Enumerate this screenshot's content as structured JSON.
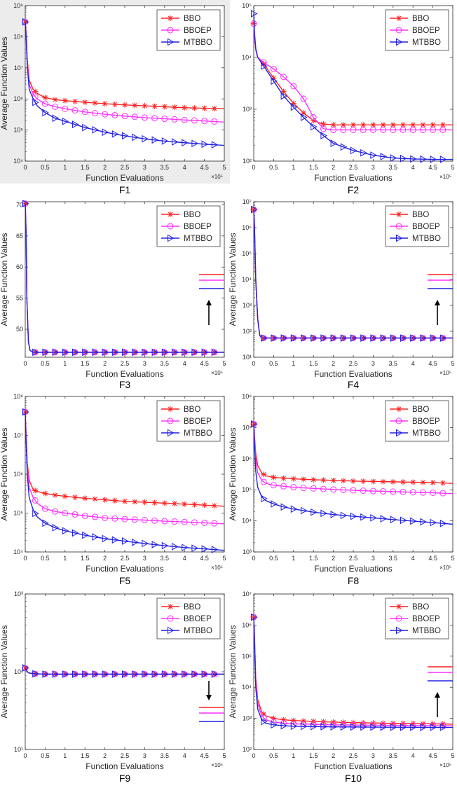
{
  "figure": {
    "series_styles": [
      {
        "name": "BBO",
        "color": "#ff2020",
        "marker": "star"
      },
      {
        "name": "BBOEP",
        "color": "#ff30ff",
        "marker": "circle"
      },
      {
        "name": "MTBBO",
        "color": "#2020e0",
        "marker": "triangle-right"
      }
    ],
    "x_multiplier_label": "×10⁵",
    "xlabel": "Function Evaluations",
    "ylabel": "Average Function Values"
  },
  "chart_data": [
    {
      "type": "line",
      "caption": "F1",
      "yscale": "log",
      "xlabel": "Function Evaluations",
      "ylabel": "Average Function Values",
      "xlim": [
        0,
        5
      ],
      "xticks": [
        "0",
        "0.5",
        "1",
        "1.5",
        "2",
        "2.5",
        "3",
        "3.5",
        "4",
        "4.5",
        "5"
      ],
      "ylim_exp": [
        4,
        9
      ],
      "yticks": [
        "10⁴",
        "10⁵",
        "10⁶",
        "10⁷",
        "10⁸",
        "10⁹"
      ],
      "grid": false,
      "legend": "top-right",
      "x": [
        0,
        0.02,
        0.05,
        0.1,
        0.2,
        0.3,
        0.5,
        0.75,
        1,
        1.5,
        2,
        2.5,
        3,
        3.5,
        4,
        4.5,
        5
      ],
      "series": [
        {
          "name": "BBO",
          "values": [
            300000000.0,
            150000000.0,
            20000000.0,
            4000000.0,
            2000000.0,
            1500000.0,
            1100000.0,
            950000.0,
            880000.0,
            780000.0,
            700000.0,
            640000.0,
            600000.0,
            560000.0,
            520000.0,
            500000.0,
            480000.0
          ]
        },
        {
          "name": "BBOEP",
          "values": [
            300000000.0,
            130000000.0,
            16000000.0,
            3000000.0,
            1400000.0,
            1000000.0,
            700000.0,
            560000.0,
            480000.0,
            380000.0,
            320000.0,
            280000.0,
            250000.0,
            230000.0,
            210000.0,
            195000.0,
            180000.0
          ]
        },
        {
          "name": "MTBBO",
          "values": [
            300000000.0,
            120000000.0,
            12000000.0,
            2000000.0,
            1000000.0,
            600000.0,
            360000.0,
            240000.0,
            190000.0,
            120000.0,
            85000.0,
            65000.0,
            52000.0,
            44000.0,
            39000.0,
            35000.0,
            32000.0
          ]
        }
      ],
      "annotation_arrow": null
    },
    {
      "type": "line",
      "caption": "F2",
      "yscale": "log",
      "xlabel": "Function Evaluations",
      "ylabel": "",
      "xlim": [
        0,
        5
      ],
      "xticks": [
        "0",
        "0.5",
        "1",
        "1.5",
        "2",
        "2.5",
        "3",
        "3.5",
        "4",
        "4.5",
        "5"
      ],
      "ylim_exp": [
        2,
        5
      ],
      "yticks": [
        "10²",
        "10³",
        "10⁴",
        "10⁵"
      ],
      "grid": false,
      "legend": "top-right",
      "x": [
        0,
        0.02,
        0.05,
        0.1,
        0.25,
        0.5,
        0.75,
        1,
        1.25,
        1.5,
        1.75,
        2,
        2.5,
        3,
        3.5,
        4,
        4.5,
        5
      ],
      "series": [
        {
          "name": "BBO",
          "values": [
            45000.0,
            25000.0,
            14000.0,
            10000.0,
            7500.0,
            4000.0,
            2200.0,
            1300.0,
            850,
            600,
            520,
            500,
            500,
            500,
            500,
            500,
            500,
            500
          ]
        },
        {
          "name": "BBOEP",
          "values": [
            45000.0,
            25000.0,
            14000.0,
            10000.0,
            8000.0,
            6000.0,
            4200.0,
            2800.0,
            1600.0,
            700,
            420,
            400,
            400,
            400,
            400,
            400,
            400,
            400
          ]
        },
        {
          "name": "MTBBO",
          "values": [
            70000.0,
            30000.0,
            15000.0,
            10000.0,
            6800.0,
            3500.0,
            1800.0,
            1100.0,
            700,
            460,
            310,
            220,
            160,
            130,
            115,
            110,
            108,
            108
          ]
        }
      ],
      "annotation_arrow": null
    },
    {
      "type": "line",
      "caption": "F3",
      "yscale": "linear",
      "xlabel": "Function Evaluations",
      "ylabel": "Average Function Values",
      "xlim": [
        0,
        5
      ],
      "xticks": [
        "0",
        "0.5",
        "1",
        "1.5",
        "2",
        "2.5",
        "3",
        "3.5",
        "4",
        "4.5",
        "5"
      ],
      "ylim": [
        45.5,
        70.5
      ],
      "yticks": [
        "50",
        "55",
        "60",
        "65",
        "70"
      ],
      "ytick_values": [
        50,
        55,
        60,
        65,
        70
      ],
      "grid": false,
      "legend": "top-right",
      "x": [
        0,
        0.02,
        0.04,
        0.08,
        0.12,
        0.2,
        0.5,
        1,
        1.5,
        2,
        2.5,
        3,
        3.5,
        4,
        4.5,
        5
      ],
      "series": [
        {
          "name": "BBO",
          "values": [
            70.2,
            66,
            55,
            48,
            46.6,
            46.3,
            46.3,
            46.3,
            46.3,
            46.3,
            46.3,
            46.3,
            46.3,
            46.3,
            46.3,
            46.3
          ]
        },
        {
          "name": "BBOEP",
          "values": [
            70.2,
            66,
            55,
            48,
            46.6,
            46.3,
            46.3,
            46.3,
            46.3,
            46.3,
            46.3,
            46.3,
            46.3,
            46.3,
            46.3,
            46.3
          ]
        },
        {
          "name": "MTBBO",
          "values": [
            70.2,
            66,
            55,
            48,
            46.6,
            46.3,
            46.3,
            46.3,
            46.3,
            46.3,
            46.3,
            46.3,
            46.3,
            46.3,
            46.3,
            46.3
          ]
        }
      ],
      "annotation_arrow": "up"
    },
    {
      "type": "line",
      "caption": "F4",
      "yscale": "log",
      "xlabel": "Function Evaluations",
      "ylabel": "Average Function Values",
      "xlim": [
        0,
        5
      ],
      "xticks": [
        "0",
        "0.5",
        "1",
        "1.5",
        "2",
        "2.5",
        "3",
        "3.5",
        "4",
        "4.5",
        "5"
      ],
      "ylim_exp": [
        1,
        7
      ],
      "yticks": [
        "10¹",
        "10²",
        "10³",
        "10⁴",
        "10⁵",
        "10⁶",
        "10⁷"
      ],
      "grid": false,
      "legend": "top-right",
      "x": [
        0,
        0.02,
        0.05,
        0.1,
        0.15,
        0.2,
        0.5,
        1,
        1.5,
        2,
        2.5,
        3,
        3.5,
        4,
        4.5,
        5
      ],
      "series": [
        {
          "name": "BBO",
          "values": [
            5000000.0,
            1000000.0,
            10000.0,
            300,
            70,
            55,
            55,
            55,
            55,
            55,
            55,
            55,
            55,
            55,
            55,
            55
          ]
        },
        {
          "name": "BBOEP",
          "values": [
            5000000.0,
            1000000.0,
            10000.0,
            300,
            70,
            55,
            55,
            55,
            55,
            55,
            55,
            55,
            55,
            55,
            55,
            55
          ]
        },
        {
          "name": "MTBBO",
          "values": [
            5000000.0,
            1000000.0,
            10000.0,
            300,
            70,
            55,
            55,
            55,
            55,
            55,
            55,
            55,
            55,
            55,
            55,
            55
          ]
        }
      ],
      "annotation_arrow": "up"
    },
    {
      "type": "line",
      "caption": "F5",
      "yscale": "log",
      "xlabel": "Function Evaluations",
      "ylabel": "Average Function Values",
      "xlim": [
        0,
        5
      ],
      "xticks": [
        "0",
        "0.5",
        "1",
        "1.5",
        "2",
        "2.5",
        "3",
        "3.5",
        "4",
        "4.5",
        "5"
      ],
      "ylim_exp": [
        4,
        8
      ],
      "yticks": [
        "10⁴",
        "10⁵",
        "10⁶",
        "10⁷",
        "10⁸"
      ],
      "grid": false,
      "legend": "top-right",
      "x": [
        0,
        0.02,
        0.05,
        0.1,
        0.2,
        0.3,
        0.5,
        0.75,
        1,
        1.5,
        2,
        2.5,
        3,
        3.5,
        4,
        4.5,
        5
      ],
      "series": [
        {
          "name": "BBO",
          "values": [
            40000000.0,
            12000000.0,
            2000000.0,
            700000.0,
            400000.0,
            360000.0,
            320000.0,
            290000.0,
            270000.0,
            240000.0,
            220000.0,
            200000.0,
            190000.0,
            180000.0,
            170000.0,
            160000.0,
            150000.0
          ]
        },
        {
          "name": "BBOEP",
          "values": [
            40000000.0,
            10000000.0,
            1600000.0,
            450000.0,
            250000.0,
            180000.0,
            130000.0,
            110000.0,
            100000.0,
            85000.0,
            75000.0,
            70000.0,
            66000.0,
            62000.0,
            59000.0,
            56000.0,
            53000.0
          ]
        },
        {
          "name": "MTBBO",
          "values": [
            40000000.0,
            8000000.0,
            1000000.0,
            250000.0,
            120000.0,
            80000.0,
            55000.0,
            42000.0,
            35000.0,
            27000.0,
            22000.0,
            19000.0,
            16500.0,
            14500.0,
            13000.0,
            12000.0,
            11000.0
          ]
        }
      ],
      "annotation_arrow": null
    },
    {
      "type": "line",
      "caption": "F8",
      "yscale": "log",
      "xlabel": "Function Evaluations",
      "ylabel": "Average Function Values",
      "xlim": [
        0,
        5
      ],
      "xticks": [
        "0",
        "0.5",
        "1",
        "1.5",
        "2",
        "2.5",
        "3",
        "3.5",
        "4",
        "4.5",
        "5"
      ],
      "ylim_exp": [
        3,
        8
      ],
      "yticks": [
        "10³",
        "10⁴",
        "10⁵",
        "10⁶",
        "10⁷",
        "10⁸"
      ],
      "grid": false,
      "legend": "top-right",
      "x": [
        0,
        0.02,
        0.05,
        0.1,
        0.2,
        0.3,
        0.5,
        0.75,
        1,
        1.5,
        2,
        2.5,
        3,
        3.5,
        4,
        4.5,
        5
      ],
      "series": [
        {
          "name": "BBO",
          "values": [
            13000000.0,
            5000000.0,
            1500000.0,
            600000.0,
            350000.0,
            280000.0,
            250000.0,
            235000.0,
            225000.0,
            210000.0,
            200000.0,
            190000.0,
            185000.0,
            180000.0,
            175000.0,
            170000.0,
            160000.0
          ]
        },
        {
          "name": "BBOEP",
          "values": [
            13000000.0,
            4000000.0,
            1000000.0,
            350000.0,
            200000.0,
            160000.0,
            140000.0,
            130000.0,
            120000.0,
            110000.0,
            102000.0,
            96000.0,
            91000.0,
            87000.0,
            83000.0,
            80000.0,
            75000.0
          ]
        },
        {
          "name": "MTBBO",
          "values": [
            13000000.0,
            2500000.0,
            400000.0,
            120000.0,
            60000.0,
            45000.0,
            35000.0,
            28000.0,
            24000.0,
            19000.0,
            16000.0,
            14000.0,
            12500.0,
            11000.0,
            9800.0,
            8800.0,
            7800.0
          ]
        }
      ],
      "annotation_arrow": null
    },
    {
      "type": "line",
      "caption": "F9",
      "yscale": "log",
      "xlabel": "Function Evaluations",
      "ylabel": "Average Function Values",
      "xlim": [
        0,
        5
      ],
      "xticks": [
        "0",
        "0.5",
        "1",
        "1.5",
        "2",
        "2.5",
        "3",
        "3.5",
        "4",
        "4.5",
        "5"
      ],
      "ylim_exp": [
        1,
        3
      ],
      "yticks": [
        "10¹",
        "10²",
        "10³"
      ],
      "grid": false,
      "legend": "top-right",
      "x": [
        0,
        0.05,
        0.1,
        0.25,
        0.5,
        1,
        1.5,
        2,
        2.5,
        3,
        3.5,
        4,
        4.5,
        5
      ],
      "series": [
        {
          "name": "BBO",
          "values": [
            112,
            100,
            96,
            94,
            93,
            93,
            93,
            93,
            93,
            93,
            93,
            93,
            93,
            93
          ]
        },
        {
          "name": "BBOEP",
          "values": [
            112,
            100,
            96,
            94,
            93,
            93,
            93,
            93,
            93,
            93,
            93,
            93,
            93,
            93
          ]
        },
        {
          "name": "MTBBO",
          "values": [
            112,
            100,
            96,
            94,
            93,
            93,
            93,
            93,
            93,
            93,
            93,
            93,
            93,
            93
          ]
        }
      ],
      "annotation_arrow": "down"
    },
    {
      "type": "line",
      "caption": "F10",
      "yscale": "log",
      "xlabel": "Function Evaluations",
      "ylabel": "Average Function Values",
      "xlim": [
        0,
        5
      ],
      "xticks": [
        "0",
        "0.5",
        "1",
        "1.5",
        "2",
        "2.5",
        "3",
        "3.5",
        "4",
        "4.5",
        "5"
      ],
      "ylim_exp": [
        2,
        7
      ],
      "yticks": [
        "10²",
        "10³",
        "10⁴",
        "10⁵",
        "10⁶",
        "10⁷"
      ],
      "grid": false,
      "legend": "top-right",
      "x": [
        0,
        0.02,
        0.05,
        0.1,
        0.2,
        0.3,
        0.5,
        0.75,
        1,
        1.5,
        2,
        2.5,
        3,
        3.5,
        4,
        4.5,
        5
      ],
      "series": [
        {
          "name": "BBO",
          "values": [
            1800000.0,
            400000.0,
            20000.0,
            4000.0,
            1600.0,
            1200.0,
            1000.0,
            900,
            850,
            800,
            760,
            730,
            710,
            690,
            680,
            670,
            650
          ]
        },
        {
          "name": "BBOEP",
          "values": [
            1800000.0,
            350000.0,
            15000.0,
            3000.0,
            1200.0,
            900,
            760,
            700,
            670,
            640,
            620,
            610,
            600,
            595,
            590,
            585,
            580
          ]
        },
        {
          "name": "MTBBO",
          "values": [
            1800000.0,
            300000.0,
            10000.0,
            2000.0,
            900,
            700,
            620,
            580,
            560,
            545,
            535,
            530,
            525,
            520,
            518,
            515,
            512
          ]
        }
      ],
      "annotation_arrow": "up"
    }
  ]
}
